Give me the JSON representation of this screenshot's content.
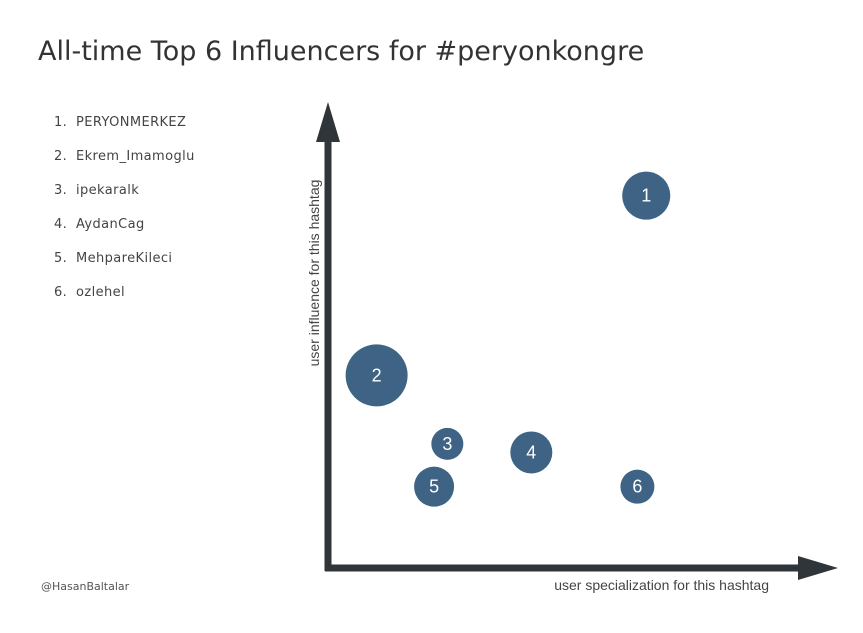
{
  "title": "All-time Top 6 Influencers for #peryonkongre",
  "ranking": [
    {
      "rank": "1.",
      "name": "PERYONMERKEZ"
    },
    {
      "rank": "2.",
      "name": "Ekrem_Imamoglu"
    },
    {
      "rank": "3.",
      "name": "ipekaralk"
    },
    {
      "rank": "4.",
      "name": "AydanCag"
    },
    {
      "rank": "5.",
      "name": "MehpareKileci"
    },
    {
      "rank": "6.",
      "name": "ozlehel"
    }
  ],
  "credit": "@HasanBaltalar",
  "colors": {
    "bubble": "#3e6384",
    "axis": "#2f3538",
    "text": "#333333"
  },
  "chart_data": {
    "type": "scatter",
    "xlabel": "user specialization for this hashtag",
    "ylabel": "user influence for this hashtag",
    "xlim": [
      0,
      100
    ],
    "ylim": [
      0,
      100
    ],
    "grid": false,
    "points": [
      {
        "label": "1",
        "x": 72,
        "y": 87,
        "size": 24
      },
      {
        "label": "2",
        "x": 11,
        "y": 45,
        "size": 31
      },
      {
        "label": "3",
        "x": 27,
        "y": 29,
        "size": 16
      },
      {
        "label": "4",
        "x": 46,
        "y": 27,
        "size": 21
      },
      {
        "label": "5",
        "x": 24,
        "y": 19,
        "size": 20
      },
      {
        "label": "6",
        "x": 70,
        "y": 19,
        "size": 17
      }
    ]
  }
}
